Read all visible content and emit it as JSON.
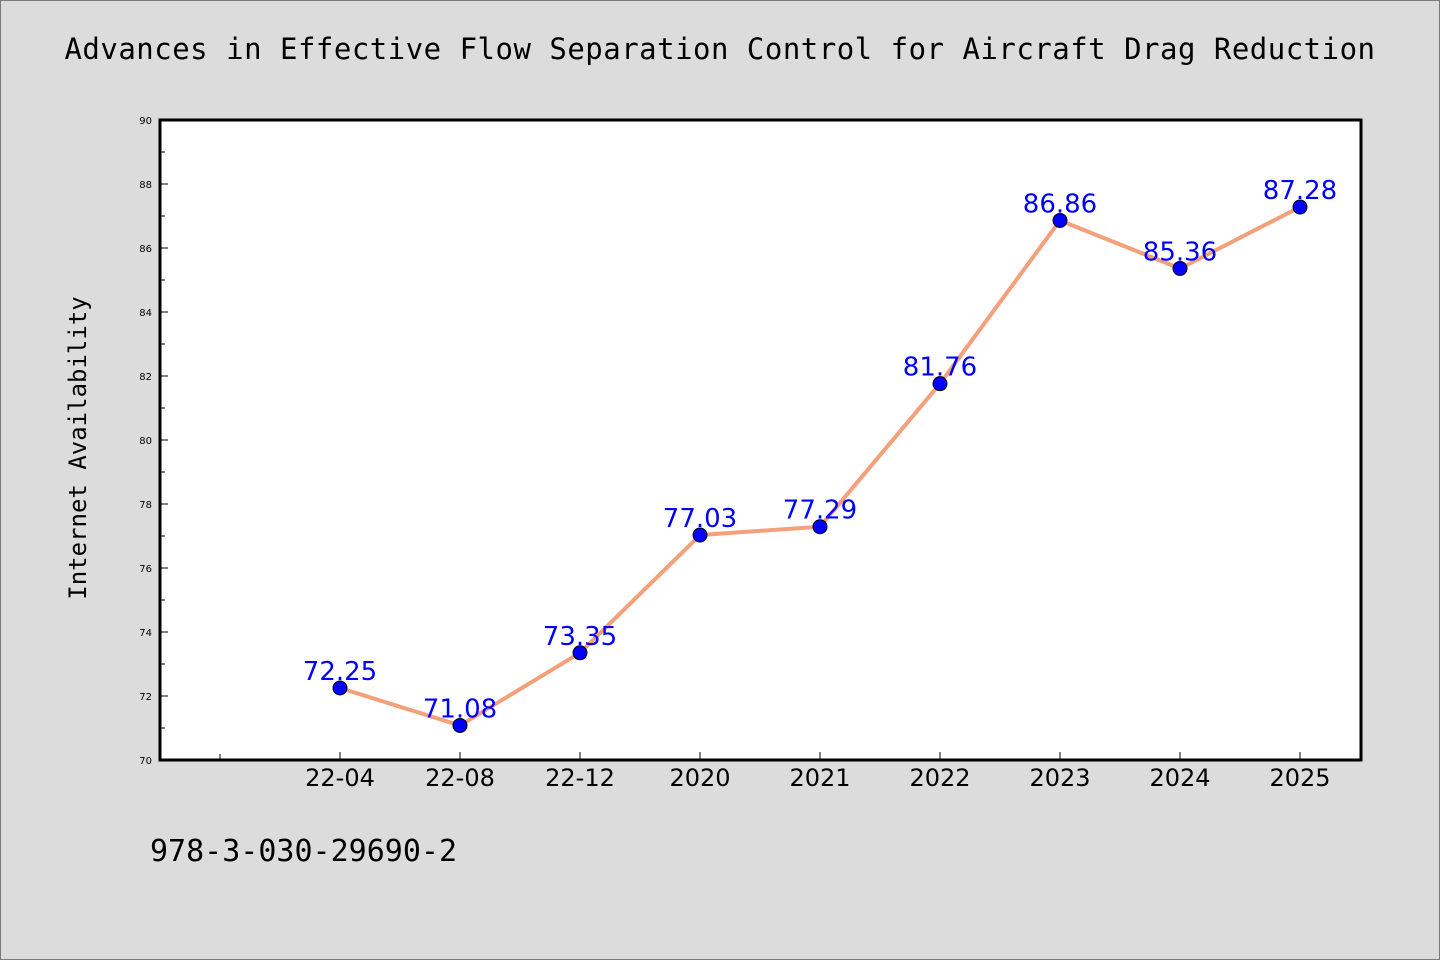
{
  "title": "Advances in Effective Flow Separation Control for Aircraft Drag Reduction",
  "footnote": "978-3-030-29690-2",
  "colors": {
    "background": "#dcdcdc",
    "plot_background": "#ffffff",
    "line": "#f4a07a",
    "marker": "#0000ff",
    "label": "#0000ff"
  },
  "chart_data": {
    "type": "line",
    "title": "Advances in Effective Flow Separation Control for Aircraft Drag Reduction",
    "xlabel": "",
    "ylabel": "Internet Availability",
    "categories": [
      "22-04",
      "22-08",
      "22-12",
      "2020",
      "2021",
      "2022",
      "2023",
      "2024",
      "2025"
    ],
    "series": [
      {
        "values": [
          72.25,
          71.08,
          73.35,
          77.03,
          77.29,
          81.76,
          86.86,
          85.36,
          87.28
        ]
      }
    ],
    "data_labels": [
      "72.25",
      "71.08",
      "73.35",
      "77.03",
      "77.29",
      "81.76",
      "86.86",
      "85.36",
      "87.28"
    ],
    "ylim": [
      70,
      90
    ],
    "yticks": [
      "70",
      "72",
      "74",
      "76",
      "78",
      "80",
      "82",
      "84",
      "86",
      "88",
      "90"
    ],
    "grid": false,
    "legend": "none"
  }
}
